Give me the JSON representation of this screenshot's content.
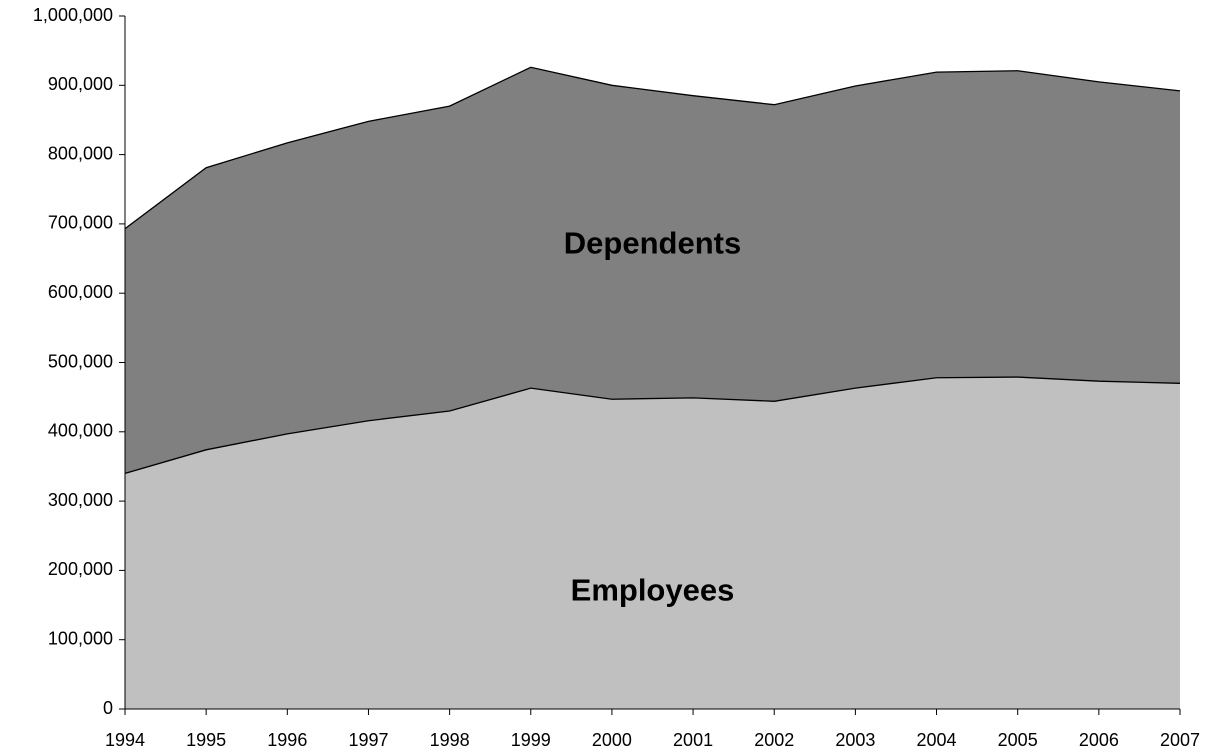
{
  "chart_data": {
    "type": "stacked-area",
    "categories": [
      "1994",
      "1995",
      "1996",
      "1997",
      "1998",
      "1999",
      "2000",
      "2001",
      "2002",
      "2003",
      "2004",
      "2005",
      "2006",
      "2007"
    ],
    "series": [
      {
        "name": "Employees",
        "color": "#c0c0c0",
        "values": [
          340000,
          374000,
          397000,
          416000,
          430000,
          463000,
          447000,
          449000,
          444000,
          463000,
          478000,
          479000,
          473000,
          470000
        ]
      },
      {
        "name": "Dependents",
        "color": "#808080",
        "values": [
          353000,
          407000,
          420000,
          432000,
          440000,
          463000,
          453000,
          436000,
          428000,
          436000,
          441000,
          442000,
          432000,
          422000
        ]
      }
    ],
    "ylim": [
      0,
      1000000
    ],
    "yticks": [
      0,
      {
        "value": 100000,
        "label": "100,000"
      },
      {
        "value": 200000,
        "label": "200,000"
      },
      {
        "value": 300000,
        "label": "300,000"
      },
      {
        "value": 400000,
        "label": "400,000"
      },
      {
        "value": 500000,
        "label": "500,000"
      },
      {
        "value": 600000,
        "label": "600,000"
      },
      {
        "value": 700000,
        "label": "700,000"
      },
      {
        "value": 800000,
        "label": "800,000"
      },
      {
        "value": 900000,
        "label": "900,000"
      },
      {
        "value": 1000000,
        "label": "1,000,000"
      }
    ],
    "grid": false
  }
}
